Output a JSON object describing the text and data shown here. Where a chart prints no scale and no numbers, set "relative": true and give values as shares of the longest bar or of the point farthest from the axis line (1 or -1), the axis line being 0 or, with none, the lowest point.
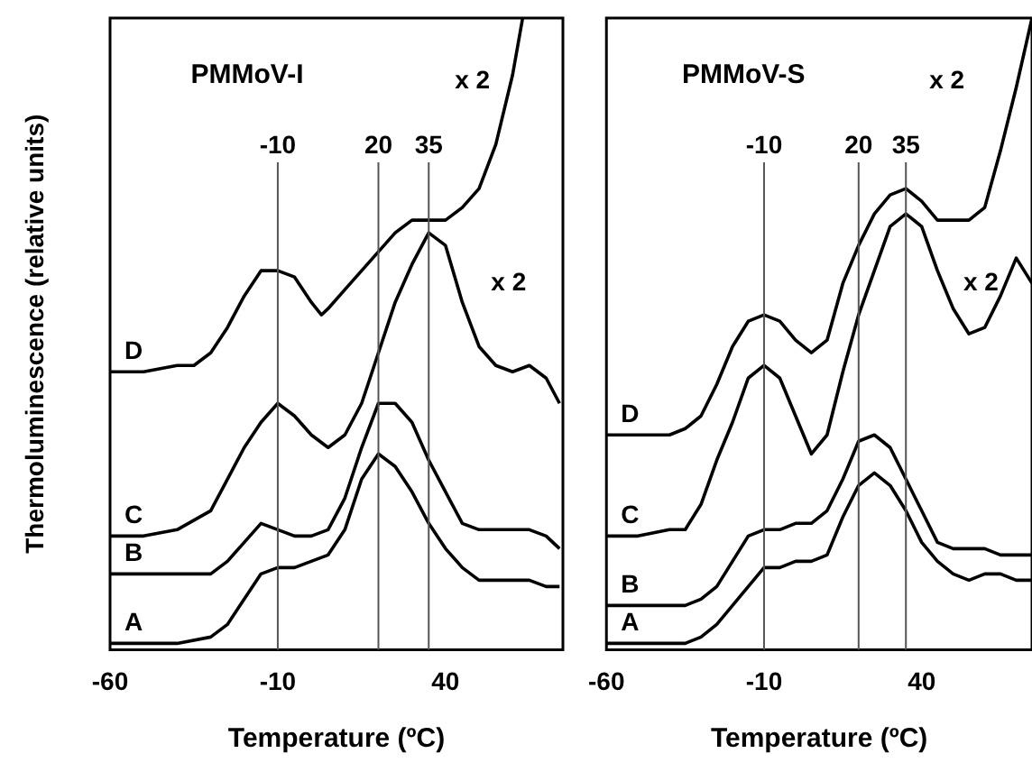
{
  "chart_data": [
    {
      "type": "line",
      "title": "PMMoV-I",
      "xlabel": "Temperature (ºC)",
      "ylabel": "Thermoluminescence (relative units)",
      "relative": true,
      "xlim": [
        -60,
        75
      ],
      "xticks": [
        -60,
        -10,
        40
      ],
      "x": [
        -60,
        -50,
        -40,
        -30,
        -25,
        -20,
        -15,
        -10,
        -5,
        0,
        5,
        10,
        15,
        20,
        25,
        30,
        35,
        40,
        45,
        50,
        55,
        60,
        65,
        70,
        74
      ],
      "series": [
        {
          "name": "A",
          "color": "#000000",
          "values": [
            0.01,
            0.01,
            0.01,
            0.02,
            0.04,
            0.08,
            0.12,
            0.13,
            0.13,
            0.14,
            0.15,
            0.19,
            0.27,
            0.31,
            0.29,
            0.25,
            0.2,
            0.16,
            0.13,
            0.11,
            0.11,
            0.11,
            0.11,
            0.1,
            0.1
          ]
        },
        {
          "name": "B",
          "color": "#000000",
          "values": [
            0.12,
            0.12,
            0.12,
            0.12,
            0.14,
            0.17,
            0.2,
            0.19,
            0.18,
            0.18,
            0.19,
            0.24,
            0.32,
            0.39,
            0.39,
            0.36,
            0.3,
            0.25,
            0.2,
            0.19,
            0.19,
            0.19,
            0.19,
            0.18,
            0.16
          ]
        },
        {
          "name": "C",
          "color": "#000000",
          "values": [
            0.18,
            0.18,
            0.19,
            0.22,
            0.27,
            0.32,
            0.36,
            0.39,
            0.37,
            0.34,
            0.32,
            0.34,
            0.39,
            0.47,
            0.55,
            0.61,
            0.66,
            0.64,
            0.55,
            0.48,
            0.45,
            0.44,
            0.45,
            0.43,
            0.39
          ]
        },
        {
          "name": "D",
          "color": "#000000",
          "x": [
            -60,
            -50,
            -40,
            -35,
            -30,
            -25,
            -20,
            -15,
            -10,
            -5,
            0,
            3,
            5,
            10,
            15,
            20,
            25,
            30,
            35,
            40,
            45,
            50,
            55,
            60,
            62,
            63
          ],
          "values": [
            0.44,
            0.44,
            0.45,
            0.45,
            0.47,
            0.51,
            0.56,
            0.6,
            0.6,
            0.59,
            0.55,
            0.53,
            0.54,
            0.57,
            0.6,
            0.63,
            0.66,
            0.68,
            0.68,
            0.68,
            0.7,
            0.73,
            0.8,
            0.91,
            0.97,
            1
          ]
        }
      ],
      "ref_lines": [
        {
          "axis": "x",
          "value": -10,
          "label": "-10"
        },
        {
          "axis": "x",
          "value": 20,
          "label": "20"
        },
        {
          "axis": "x",
          "value": 35,
          "label": "35"
        }
      ],
      "annotations": [
        "x 2",
        "x 2"
      ]
    },
    {
      "type": "line",
      "title": "PMMoV-S",
      "xlabel": "Temperature (ºC)",
      "relative": true,
      "xlim": [
        -60,
        75
      ],
      "xticks": [
        -60,
        -10,
        40
      ],
      "x": [
        -60,
        -50,
        -40,
        -35,
        -30,
        -25,
        -20,
        -15,
        -10,
        -5,
        0,
        5,
        10,
        15,
        20,
        25,
        30,
        35,
        40,
        45,
        50,
        55,
        60,
        65,
        70,
        75
      ],
      "series": [
        {
          "name": "A",
          "color": "#000000",
          "values": [
            0.01,
            0.01,
            0.01,
            0.01,
            0.02,
            0.04,
            0.07,
            0.1,
            0.13,
            0.13,
            0.14,
            0.14,
            0.15,
            0.21,
            0.26,
            0.28,
            0.26,
            0.22,
            0.17,
            0.14,
            0.12,
            0.11,
            0.12,
            0.12,
            0.11,
            0.11
          ]
        },
        {
          "name": "B",
          "color": "#000000",
          "values": [
            0.07,
            0.07,
            0.07,
            0.07,
            0.08,
            0.1,
            0.14,
            0.18,
            0.19,
            0.19,
            0.2,
            0.2,
            0.22,
            0.27,
            0.33,
            0.34,
            0.32,
            0.27,
            0.22,
            0.17,
            0.16,
            0.16,
            0.16,
            0.15,
            0.15,
            0.15
          ]
        },
        {
          "name": "C",
          "color": "#000000",
          "values": [
            0.18,
            0.18,
            0.19,
            0.19,
            0.23,
            0.3,
            0.36,
            0.43,
            0.45,
            0.43,
            0.37,
            0.31,
            0.34,
            0.44,
            0.53,
            0.6,
            0.67,
            0.69,
            0.67,
            0.6,
            0.54,
            0.5,
            0.51,
            0.56,
            0.62,
            0.58
          ]
        },
        {
          "name": "D",
          "color": "#000000",
          "values": [
            0.34,
            0.34,
            0.34,
            0.35,
            0.37,
            0.42,
            0.48,
            0.52,
            0.53,
            0.52,
            0.49,
            0.47,
            0.49,
            0.58,
            0.64,
            0.69,
            0.72,
            0.73,
            0.71,
            0.68,
            0.68,
            0.68,
            0.7,
            0.79,
            0.89,
            1
          ]
        }
      ],
      "ref_lines": [
        {
          "axis": "x",
          "value": -10,
          "label": "-10"
        },
        {
          "axis": "x",
          "value": 20,
          "label": "20"
        },
        {
          "axis": "x",
          "value": 35,
          "label": "35"
        }
      ],
      "annotations": [
        "x 2",
        "x 2"
      ]
    }
  ]
}
